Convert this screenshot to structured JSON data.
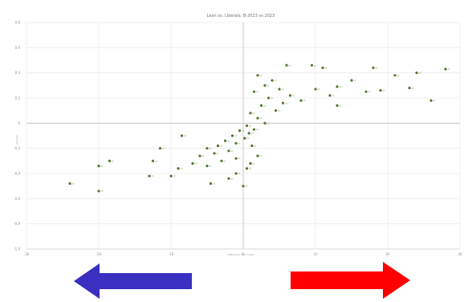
{
  "chart_data": {
    "type": "scatter",
    "title": "Lean vs. Liberals: B-2023 vs 2023",
    "xlabel": "Difference from mean",
    "ylabel": "Change",
    "xlim": [
      -30,
      30
    ],
    "ylim": [
      -1.0,
      0.8
    ],
    "x_ticks": [
      "-30",
      "-20",
      "-10",
      "0",
      "10",
      "20",
      "30"
    ],
    "y_ticks": [
      "0.8",
      "0.6",
      "0.4",
      "0.2",
      "0",
      "-0.2",
      "-0.4",
      "-0.6",
      "-0.8",
      "-1.0"
    ],
    "grid": true,
    "marker_color": "#4e7a2c",
    "points": [
      {
        "x": 6.0,
        "y": 0.46,
        "label": "pt"
      },
      {
        "x": 9.5,
        "y": 0.46,
        "label": "pt"
      },
      {
        "x": 11.0,
        "y": 0.44,
        "label": "pt"
      },
      {
        "x": 18.0,
        "y": 0.44,
        "label": "pt"
      },
      {
        "x": 28.0,
        "y": 0.43,
        "label": "pt"
      },
      {
        "x": 24.0,
        "y": 0.4,
        "label": "pt"
      },
      {
        "x": 21.0,
        "y": 0.38,
        "label": "pt"
      },
      {
        "x": 15.0,
        "y": 0.34,
        "label": "pt"
      },
      {
        "x": 23.0,
        "y": 0.28,
        "label": "pt"
      },
      {
        "x": 26.0,
        "y": 0.18,
        "label": "pt"
      },
      {
        "x": 13.0,
        "y": 0.29,
        "label": "pt"
      },
      {
        "x": 10.0,
        "y": 0.27,
        "label": "pt"
      },
      {
        "x": 17.0,
        "y": 0.25,
        "label": "pt"
      },
      {
        "x": 19.0,
        "y": 0.26,
        "label": "pt"
      },
      {
        "x": 12.0,
        "y": 0.22,
        "label": "pt"
      },
      {
        "x": 8.0,
        "y": 0.18,
        "label": "pt"
      },
      {
        "x": 13.0,
        "y": 0.14,
        "label": "pt"
      },
      {
        "x": 2.0,
        "y": 0.38,
        "label": "pt"
      },
      {
        "x": 4.0,
        "y": 0.34,
        "label": "pt"
      },
      {
        "x": 3.0,
        "y": 0.3,
        "label": "pt"
      },
      {
        "x": 5.0,
        "y": 0.27,
        "label": "pt"
      },
      {
        "x": 1.5,
        "y": 0.25,
        "label": "pt"
      },
      {
        "x": 6.5,
        "y": 0.22,
        "label": "pt"
      },
      {
        "x": 3.5,
        "y": 0.2,
        "label": "pt"
      },
      {
        "x": 5.5,
        "y": 0.16,
        "label": "pt"
      },
      {
        "x": 2.5,
        "y": 0.14,
        "label": "pt"
      },
      {
        "x": 4.5,
        "y": 0.1,
        "label": "pt"
      },
      {
        "x": 1.0,
        "y": 0.08,
        "label": "pt"
      },
      {
        "x": 2.0,
        "y": 0.04,
        "label": "pt"
      },
      {
        "x": 3.0,
        "y": 0.0,
        "label": "pt"
      },
      {
        "x": 0.5,
        "y": -0.02,
        "label": "pt"
      },
      {
        "x": 1.5,
        "y": -0.05,
        "label": "pt"
      },
      {
        "x": -0.5,
        "y": -0.06,
        "label": "pt"
      },
      {
        "x": 0.8,
        "y": -0.08,
        "label": "pt"
      },
      {
        "x": -1.5,
        "y": -0.1,
        "label": "pt"
      },
      {
        "x": 0.2,
        "y": -0.12,
        "label": "pt"
      },
      {
        "x": -2.5,
        "y": -0.14,
        "label": "pt"
      },
      {
        "x": -1.0,
        "y": -0.16,
        "label": "pt"
      },
      {
        "x": 1.2,
        "y": -0.18,
        "label": "pt"
      },
      {
        "x": -3.5,
        "y": -0.18,
        "label": "pt"
      },
      {
        "x": -5.0,
        "y": -0.2,
        "label": "pt"
      },
      {
        "x": -2.0,
        "y": -0.22,
        "label": "pt"
      },
      {
        "x": -4.0,
        "y": -0.24,
        "label": "pt"
      },
      {
        "x": -6.0,
        "y": -0.26,
        "label": "pt"
      },
      {
        "x": -8.5,
        "y": -0.1,
        "label": "pt"
      },
      {
        "x": -1.0,
        "y": -0.28,
        "label": "pt"
      },
      {
        "x": -3.0,
        "y": -0.3,
        "label": "pt"
      },
      {
        "x": -7.0,
        "y": -0.32,
        "label": "pt"
      },
      {
        "x": -5.0,
        "y": -0.34,
        "label": "pt"
      },
      {
        "x": -9.0,
        "y": -0.36,
        "label": "pt"
      },
      {
        "x": -11.5,
        "y": -0.2,
        "label": "pt"
      },
      {
        "x": -12.5,
        "y": -0.3,
        "label": "pt"
      },
      {
        "x": -10.0,
        "y": -0.42,
        "label": "pt"
      },
      {
        "x": -2.0,
        "y": -0.44,
        "label": "pt"
      },
      {
        "x": -4.5,
        "y": -0.48,
        "label": "pt"
      },
      {
        "x": 0.0,
        "y": -0.5,
        "label": "pt"
      },
      {
        "x": -1.0,
        "y": -0.4,
        "label": "pt"
      },
      {
        "x": -13.0,
        "y": -0.42,
        "label": "pt"
      },
      {
        "x": -18.5,
        "y": -0.3,
        "label": "pt"
      },
      {
        "x": -20.0,
        "y": -0.34,
        "label": "pt"
      },
      {
        "x": -24.0,
        "y": -0.48,
        "label": "pt"
      },
      {
        "x": -20.0,
        "y": -0.54,
        "label": "pt"
      },
      {
        "x": 0.5,
        "y": -0.36,
        "label": "pt"
      },
      {
        "x": 2.0,
        "y": -0.26,
        "label": "pt"
      },
      {
        "x": 1.0,
        "y": -0.32,
        "label": "pt"
      }
    ]
  },
  "arrows": {
    "left_color": "#3a2fbf",
    "right_color": "#ff0000"
  }
}
